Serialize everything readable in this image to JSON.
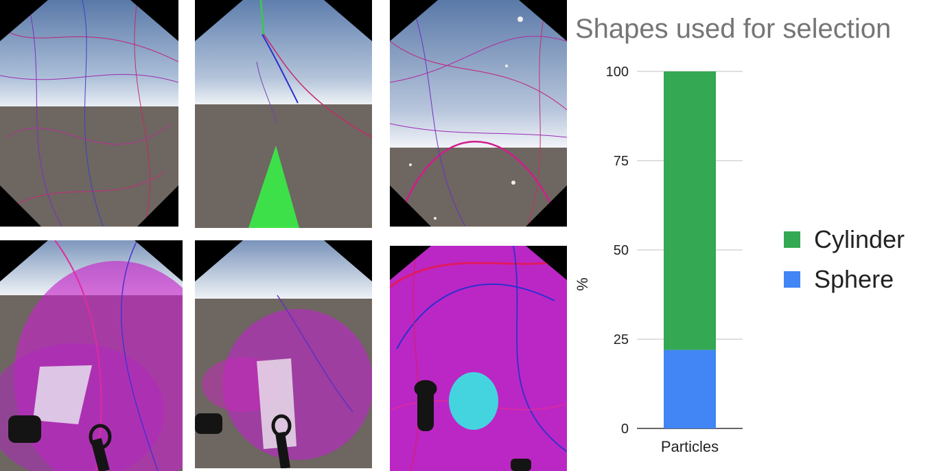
{
  "panels": [
    {
      "name": "vr-view-top-left"
    },
    {
      "name": "vr-view-top-middle"
    },
    {
      "name": "vr-view-top-right"
    },
    {
      "name": "vr-view-bottom-left"
    },
    {
      "name": "vr-view-bottom-middle"
    },
    {
      "name": "vr-view-bottom-right"
    }
  ],
  "colors": {
    "cylinder": "#34a853",
    "sphere": "#4285f4",
    "grid": "#cccccc",
    "title": "#757575"
  },
  "chart_data": {
    "type": "bar",
    "stacked": true,
    "title": "Shapes used for selection",
    "xlabel": "",
    "ylabel": "%",
    "categories": [
      "Particles"
    ],
    "series": [
      {
        "name": "Sphere",
        "values": [
          22
        ]
      },
      {
        "name": "Cylinder",
        "values": [
          78
        ]
      }
    ],
    "ylim": [
      0,
      100
    ],
    "yticks": [
      0,
      25,
      50,
      75,
      100
    ],
    "grid": true,
    "legend_position": "right"
  }
}
